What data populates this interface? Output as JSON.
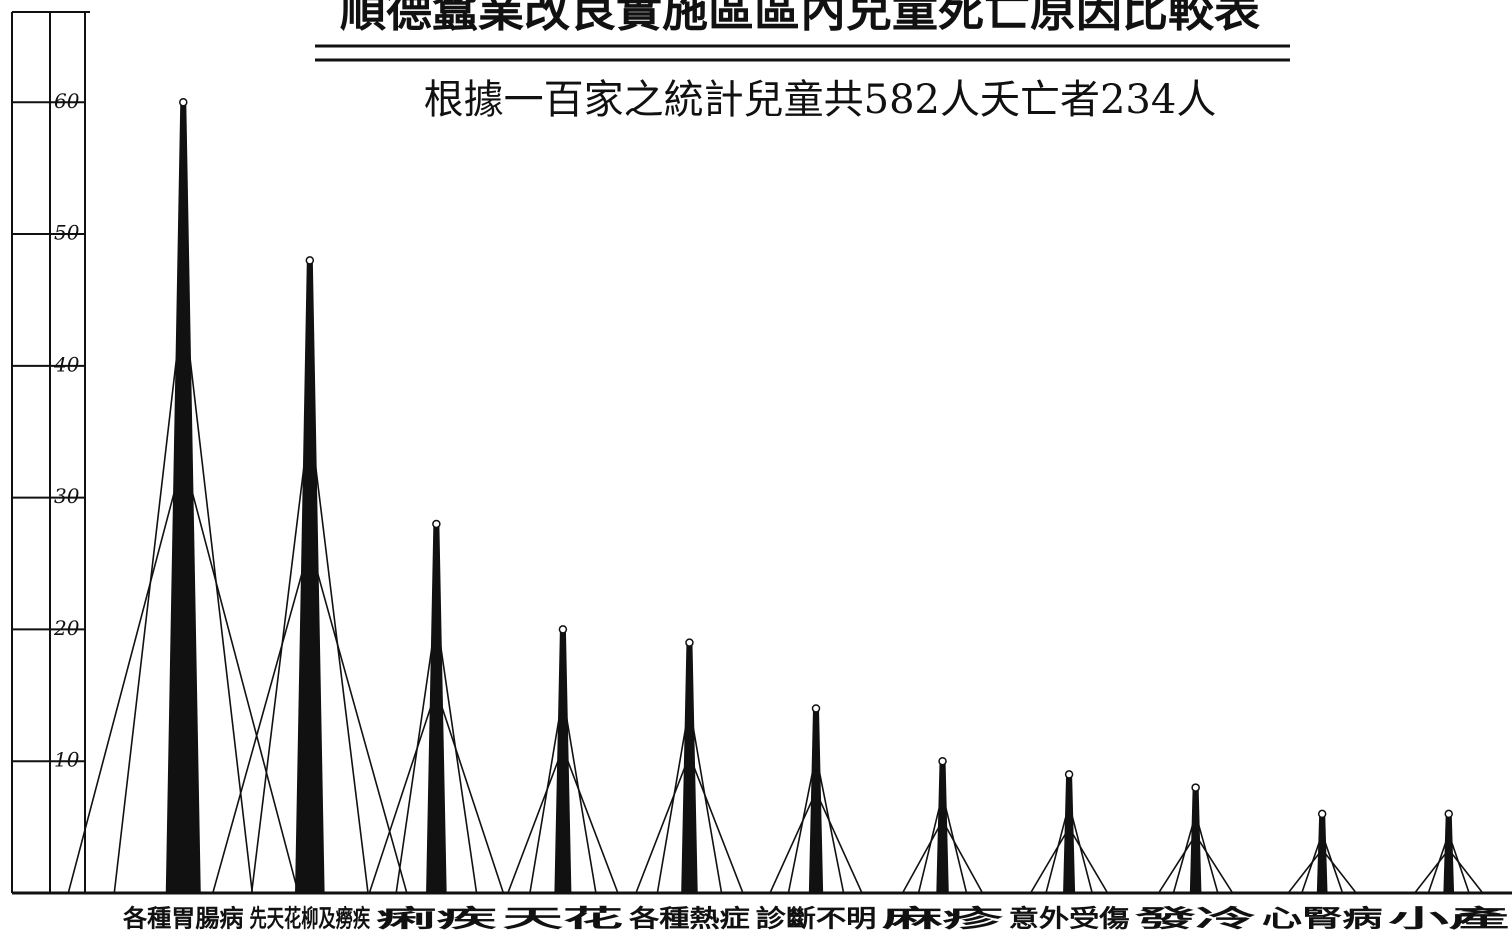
{
  "chart_data": {
    "type": "bar",
    "title": "順德蠶業改良實施區區內兒童死亡原因比較表",
    "subtitle": "根據一百家之統計兒童共582人夭亡者234人",
    "categories": [
      "各種胃腸病",
      "先天花柳及癆疾",
      "痢疾",
      "天花",
      "各種熱症",
      "診斷不明",
      "麻疹",
      "意外受傷",
      "發冷",
      "心腎病",
      "小產"
    ],
    "values": [
      60,
      48,
      28,
      20,
      19,
      14,
      10,
      9,
      8,
      6,
      6
    ],
    "color": "#111111",
    "ylim": [
      0,
      67
    ],
    "yticks": [
      10,
      20,
      30,
      40,
      50,
      60
    ]
  }
}
